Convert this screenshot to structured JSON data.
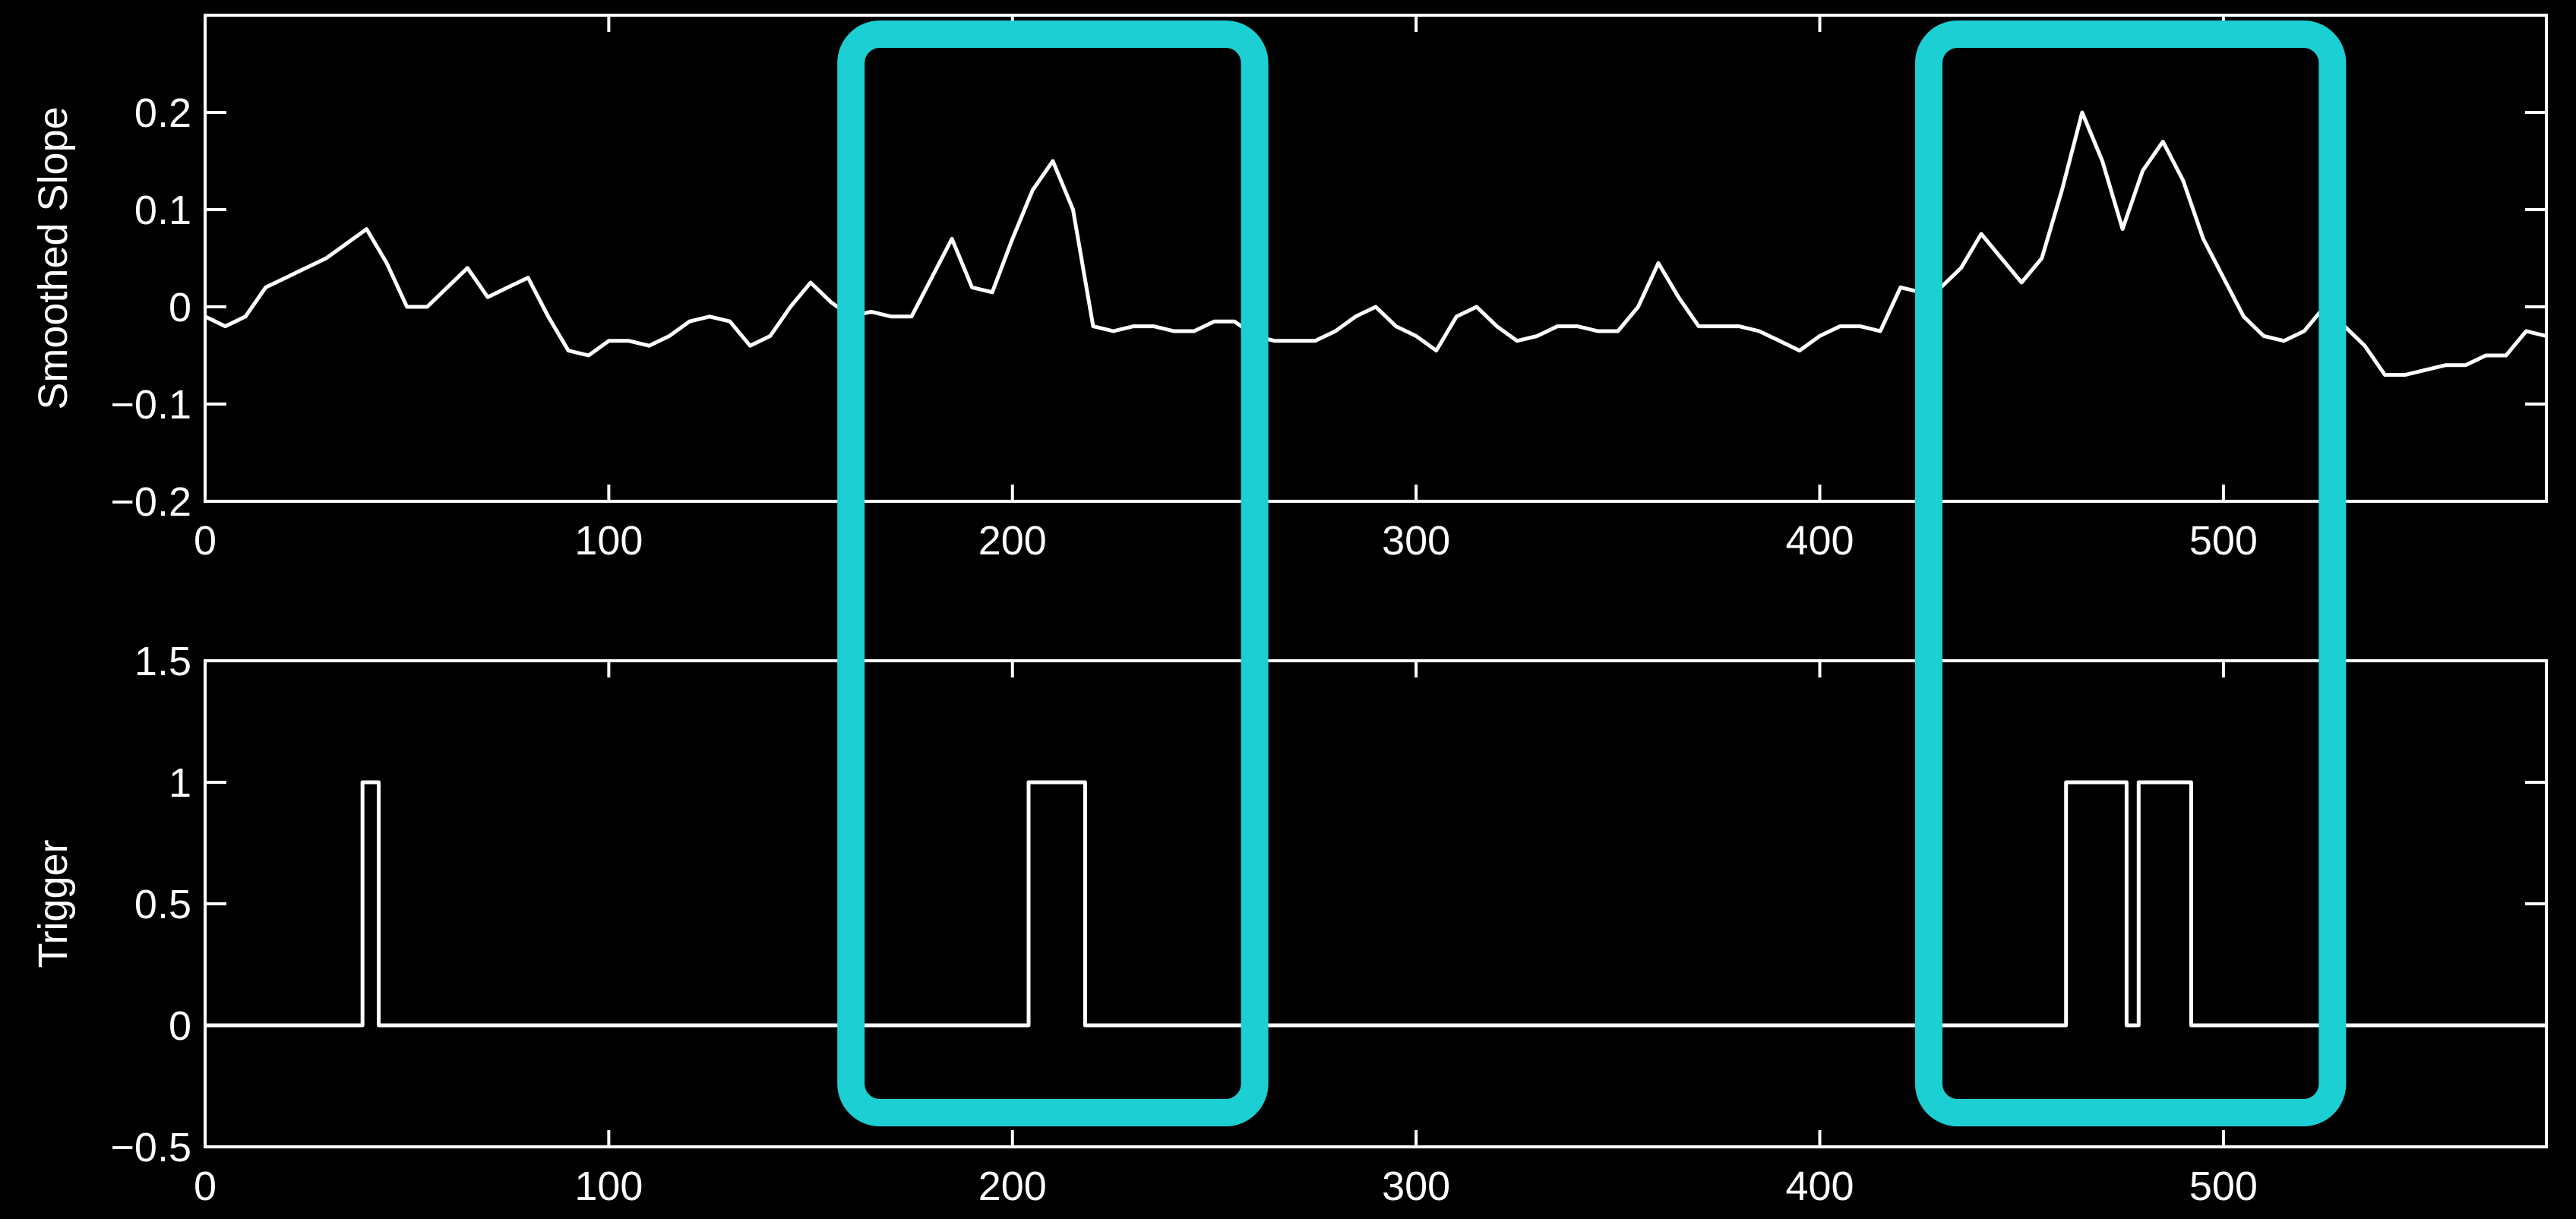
{
  "colors": {
    "background": "#000000",
    "foreground": "#ffffff",
    "highlight": "#1ccfd3"
  },
  "chart_data": [
    {
      "type": "line",
      "title": "",
      "xlabel": "",
      "ylabel": "Smoothed Slope",
      "xlim": [
        0,
        580
      ],
      "ylim": [
        -0.2,
        0.3
      ],
      "xticks": [
        0,
        100,
        200,
        300,
        400,
        500
      ],
      "xtick_labels": [
        "0",
        "100",
        "200",
        "300",
        "400",
        "500"
      ],
      "yticks": [
        -0.2,
        -0.1,
        0,
        0.1,
        0.2
      ],
      "ytick_labels": [
        "−0.2",
        "−0.1",
        "0",
        "0.1",
        "0.2"
      ],
      "grid": false,
      "series": [
        {
          "x": [
            0,
            5,
            10,
            15,
            20,
            25,
            30,
            35,
            40,
            45,
            50,
            55,
            60,
            65,
            70,
            75,
            80,
            85,
            90,
            95,
            100,
            105,
            110,
            115,
            120,
            125,
            130,
            135,
            140,
            145,
            150,
            155,
            160,
            165,
            170,
            175,
            180,
            185,
            190,
            195,
            200,
            205,
            210,
            215,
            220,
            225,
            230,
            235,
            240,
            245,
            250,
            255,
            260,
            265,
            270,
            275,
            280,
            285,
            290,
            295,
            300,
            305,
            310,
            315,
            320,
            325,
            330,
            335,
            340,
            345,
            350,
            355,
            360,
            365,
            370,
            375,
            380,
            385,
            390,
            395,
            400,
            405,
            410,
            415,
            420,
            425,
            430,
            435,
            440,
            445,
            450,
            455,
            460,
            465,
            470,
            475,
            480,
            485,
            490,
            495,
            500,
            505,
            510,
            515,
            520,
            525,
            530,
            535,
            540,
            545,
            550,
            555,
            560,
            565,
            570,
            575,
            580
          ],
          "y": [
            -0.01,
            -0.02,
            -0.01,
            0.02,
            0.03,
            0.04,
            0.05,
            0.065,
            0.08,
            0.045,
            0.0,
            0.0,
            0.02,
            0.04,
            0.01,
            0.02,
            0.03,
            -0.01,
            -0.045,
            -0.05,
            -0.035,
            -0.035,
            -0.04,
            -0.03,
            -0.015,
            -0.01,
            -0.015,
            -0.04,
            -0.03,
            0.0,
            0.025,
            0.005,
            -0.01,
            -0.005,
            -0.01,
            -0.01,
            0.03,
            0.07,
            0.02,
            0.015,
            0.07,
            0.12,
            0.15,
            0.1,
            -0.02,
            -0.025,
            -0.02,
            -0.02,
            -0.025,
            -0.025,
            -0.015,
            -0.015,
            -0.03,
            -0.035,
            -0.035,
            -0.035,
            -0.025,
            -0.01,
            0.0,
            -0.02,
            -0.03,
            -0.045,
            -0.01,
            0.0,
            -0.02,
            -0.035,
            -0.03,
            -0.02,
            -0.02,
            -0.025,
            -0.025,
            0.0,
            0.045,
            0.01,
            -0.02,
            -0.02,
            -0.02,
            -0.025,
            -0.035,
            -0.045,
            -0.03,
            -0.02,
            -0.02,
            -0.025,
            0.02,
            0.015,
            0.02,
            0.04,
            0.075,
            0.05,
            0.025,
            0.05,
            0.12,
            0.2,
            0.15,
            0.08,
            0.14,
            0.17,
            0.13,
            0.07,
            0.03,
            -0.01,
            -0.03,
            -0.035,
            -0.025,
            0.0,
            -0.02,
            -0.04,
            -0.07,
            -0.07,
            -0.065,
            -0.06,
            -0.06,
            -0.05,
            -0.05,
            -0.025,
            -0.03
          ]
        }
      ]
    },
    {
      "type": "line",
      "title": "",
      "xlabel": "",
      "ylabel": "Trigger",
      "xlim": [
        0,
        580
      ],
      "ylim": [
        -0.5,
        1.5
      ],
      "xticks": [
        0,
        100,
        200,
        300,
        400,
        500
      ],
      "xtick_labels": [
        "0",
        "100",
        "200",
        "300",
        "400",
        "500"
      ],
      "yticks": [
        -0.5,
        0,
        0.5,
        1,
        1.5
      ],
      "ytick_labels": [
        "−0.5",
        "0",
        "0.5",
        "1",
        "1.5"
      ],
      "grid": false,
      "series": [
        {
          "x": [
            0,
            39,
            39,
            43,
            43,
            204,
            204,
            218,
            218,
            461,
            461,
            476,
            476,
            479,
            479,
            492,
            492,
            580
          ],
          "y": [
            0,
            0,
            1,
            1,
            0,
            0,
            1,
            1,
            0,
            0,
            1,
            1,
            0,
            0,
            1,
            1,
            0,
            0
          ]
        }
      ]
    }
  ],
  "highlights": [
    {
      "name": "left-highlight",
      "x_range": [
        160,
        260
      ]
    },
    {
      "name": "right-highlight",
      "x_range": [
        427,
        527
      ]
    }
  ]
}
